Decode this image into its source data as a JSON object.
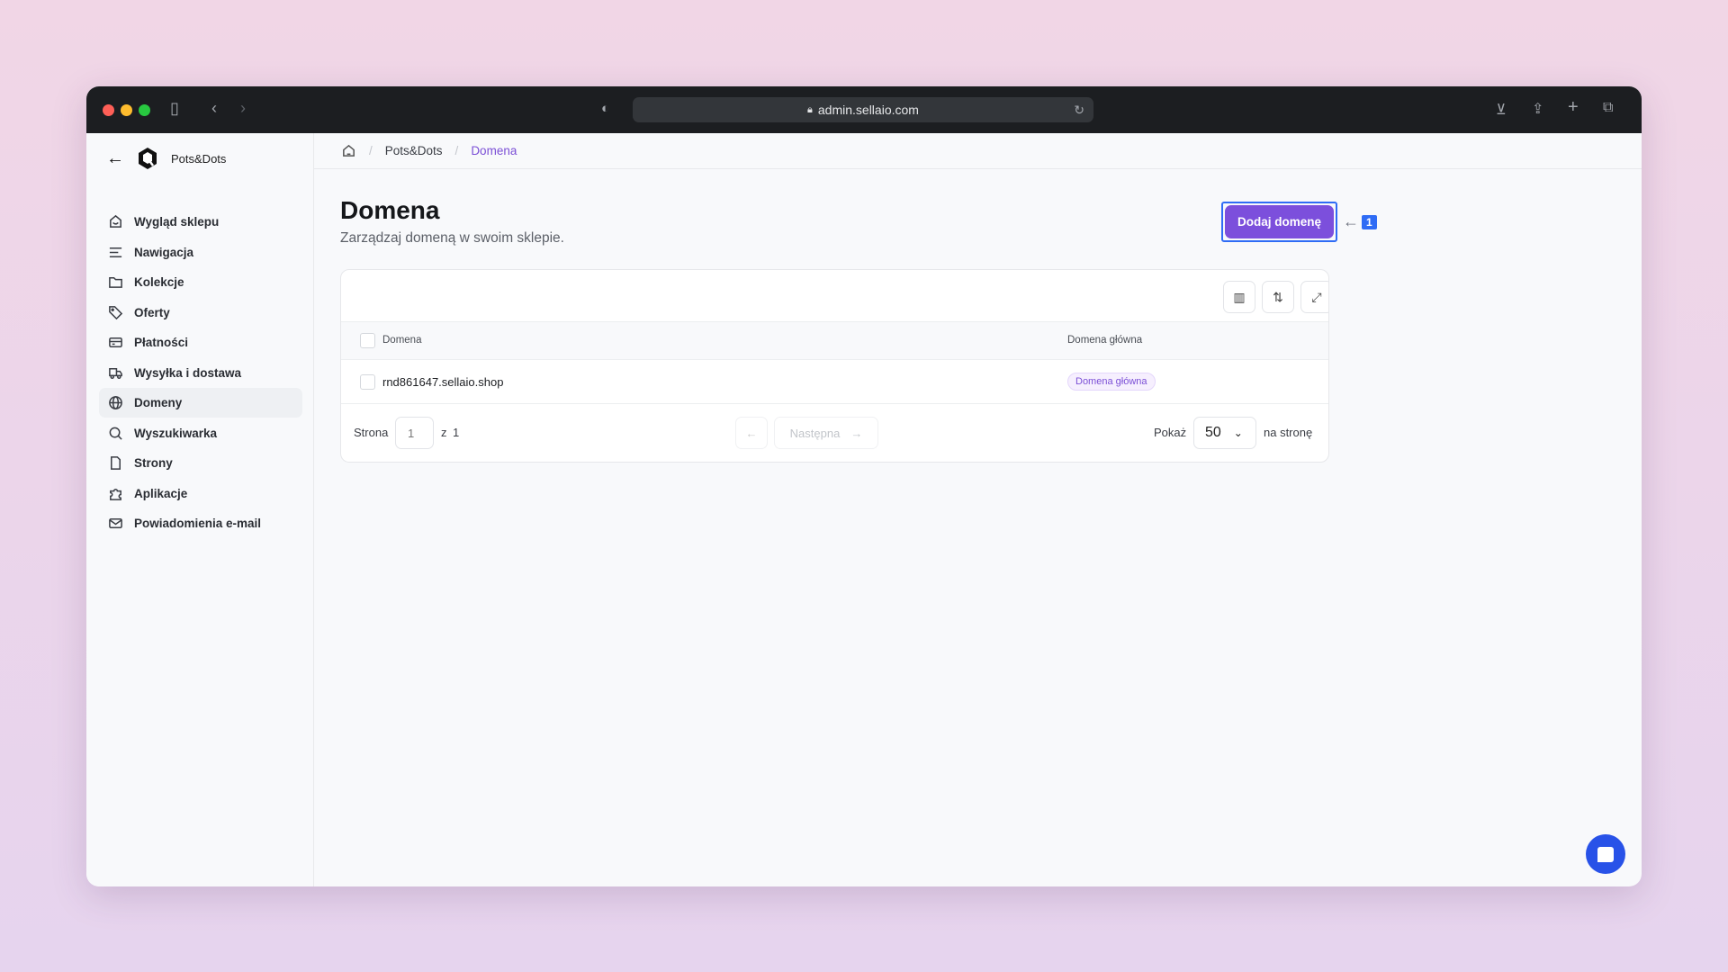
{
  "browser": {
    "url": "admin.sellaio.com"
  },
  "sidebar": {
    "store_name": "Pots&Dots",
    "items": [
      {
        "label": "Wygląd sklepu",
        "icon": "storefront-icon"
      },
      {
        "label": "Nawigacja",
        "icon": "menu-lines-icon"
      },
      {
        "label": "Kolekcje",
        "icon": "folder-icon"
      },
      {
        "label": "Oferty",
        "icon": "tag-icon"
      },
      {
        "label": "Płatności",
        "icon": "credit-card-icon"
      },
      {
        "label": "Wysyłka i dostawa",
        "icon": "truck-icon"
      },
      {
        "label": "Domeny",
        "icon": "globe-icon",
        "active": true
      },
      {
        "label": "Wyszukiwarka",
        "icon": "search-icon"
      },
      {
        "label": "Strony",
        "icon": "file-icon"
      },
      {
        "label": "Aplikacje",
        "icon": "puzzle-icon"
      },
      {
        "label": "Powiadomienia e-mail",
        "icon": "mail-icon"
      }
    ]
  },
  "breadcrumb": {
    "store": "Pots&Dots",
    "current": "Domena"
  },
  "page": {
    "title": "Domena",
    "subtitle": "Zarządzaj domeną w swoim sklepie.",
    "add_button": "Dodaj domenę",
    "annotation": "1"
  },
  "table": {
    "columns": [
      "Domena",
      "Domena główna"
    ],
    "rows": [
      {
        "domain": "rnd861647.sellaio.shop",
        "badge": "Domena główna"
      }
    ]
  },
  "pagination": {
    "page_label": "Strona",
    "page": "1",
    "of_label": "z",
    "total": "1",
    "next": "Następna",
    "show_label": "Pokaż",
    "per_page": "50",
    "per_page_suffix": "na stronę"
  },
  "colors": {
    "accent": "#7c4fdc",
    "highlight": "#2f6cf5"
  }
}
